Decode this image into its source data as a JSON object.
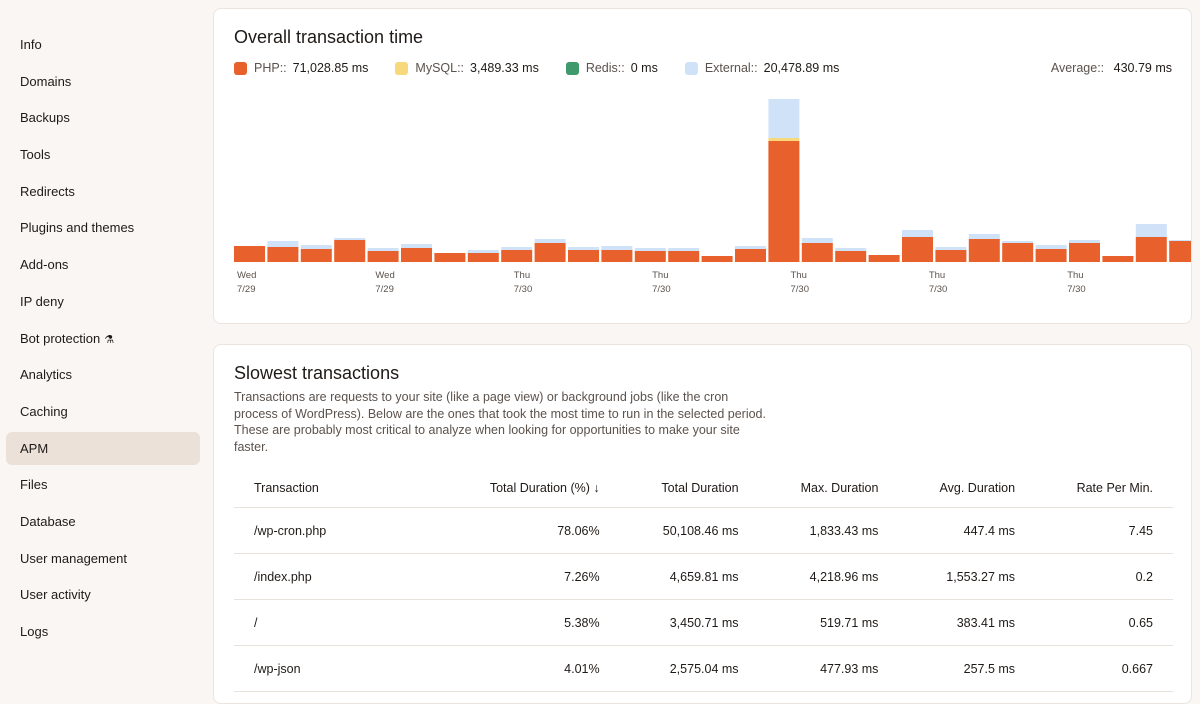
{
  "sidebar": {
    "items": [
      {
        "label": "Info"
      },
      {
        "label": "Domains"
      },
      {
        "label": "Backups"
      },
      {
        "label": "Tools"
      },
      {
        "label": "Redirects"
      },
      {
        "label": "Plugins and themes"
      },
      {
        "label": "Add-ons"
      },
      {
        "label": "IP deny"
      },
      {
        "label": "Bot protection"
      },
      {
        "label": "Analytics"
      },
      {
        "label": "Caching"
      },
      {
        "label": "APM",
        "active": true
      },
      {
        "label": "Files"
      },
      {
        "label": "Database"
      },
      {
        "label": "User management"
      },
      {
        "label": "User activity"
      },
      {
        "label": "Logs"
      }
    ]
  },
  "overall": {
    "title": "Overall transaction time",
    "legend": [
      {
        "label": "PHP::",
        "value": "71,028.85 ms",
        "color": "#e8602c"
      },
      {
        "label": "MySQL::",
        "value": "3,489.33 ms",
        "color": "#f7d87a"
      },
      {
        "label": "Redis::",
        "value": "0 ms",
        "color": "#3e9a6d"
      },
      {
        "label": "External::",
        "value": "20,478.89 ms",
        "color": "#cfe2f8"
      }
    ],
    "average_label": "Average::",
    "average_value": "430.79 ms"
  },
  "chart_data": {
    "type": "bar",
    "stacked": true,
    "series": [
      {
        "name": "PHP",
        "color": "#e8602c",
        "values": [
          16,
          15,
          13,
          22,
          11,
          14,
          9,
          9,
          12,
          19,
          12,
          12,
          11,
          11,
          6,
          13,
          121,
          19,
          11,
          7,
          25,
          12,
          23,
          19,
          13,
          19,
          6,
          25,
          21
        ]
      },
      {
        "name": "MySQL",
        "color": "#f7d87a",
        "values": [
          0,
          0,
          0,
          0,
          0,
          0,
          0,
          0,
          0,
          0,
          0,
          0,
          0,
          0,
          0,
          0,
          3,
          0,
          0,
          0,
          0,
          0,
          0,
          0,
          0,
          0,
          0,
          0,
          0
        ]
      },
      {
        "name": "Redis",
        "color": "#3e9a6d",
        "values": [
          0,
          0,
          0,
          0,
          0,
          0,
          0,
          0,
          0,
          0,
          0,
          0,
          0,
          0,
          0,
          0,
          0,
          0,
          0,
          0,
          0,
          0,
          0,
          0,
          0,
          0,
          0,
          0,
          0
        ]
      },
      {
        "name": "External",
        "color": "#cfe2f8",
        "values": [
          0,
          6,
          4,
          2,
          3,
          4,
          0,
          3,
          3,
          4,
          3,
          4,
          3,
          3,
          0,
          3,
          39,
          5,
          3,
          0,
          7,
          3,
          5,
          2,
          4,
          3,
          0,
          13,
          1
        ]
      }
    ],
    "ylim": [
      0,
      170
    ],
    "x_tick_labels": [
      {
        "day": "Wed",
        "date": "7/29"
      },
      {
        "day": "Wed",
        "date": "7/29"
      },
      {
        "day": "Thu",
        "date": "7/30"
      },
      {
        "day": "Thu",
        "date": "7/30"
      },
      {
        "day": "Thu",
        "date": "7/30"
      },
      {
        "day": "Thu",
        "date": "7/30"
      },
      {
        "day": "Thu",
        "date": "7/30"
      }
    ],
    "grid": false
  },
  "slowest": {
    "title": "Slowest transactions",
    "description": "Transactions are requests to your site (like a page view) or background jobs (like the cron process of WordPress). Below are the ones that took the most time to run in the selected period. These are probably most critical to analyze when looking for opportunities to make your site faster.",
    "columns": [
      "Transaction",
      "Total Duration (%) ↓",
      "Total Duration",
      "Max. Duration",
      "Avg. Duration",
      "Rate Per Min."
    ],
    "rows": [
      [
        "/wp-cron.php",
        "78.06%",
        "50,108.46 ms",
        "1,833.43 ms",
        "447.4 ms",
        "7.45"
      ],
      [
        "/index.php",
        "7.26%",
        "4,659.81 ms",
        "4,218.96 ms",
        "1,553.27 ms",
        "0.2"
      ],
      [
        "/",
        "5.38%",
        "3,450.71 ms",
        "519.71 ms",
        "383.41 ms",
        "0.65"
      ],
      [
        "/wp-json",
        "4.01%",
        "2,575.04 ms",
        "477.93 ms",
        "257.5 ms",
        "0.667"
      ]
    ]
  }
}
